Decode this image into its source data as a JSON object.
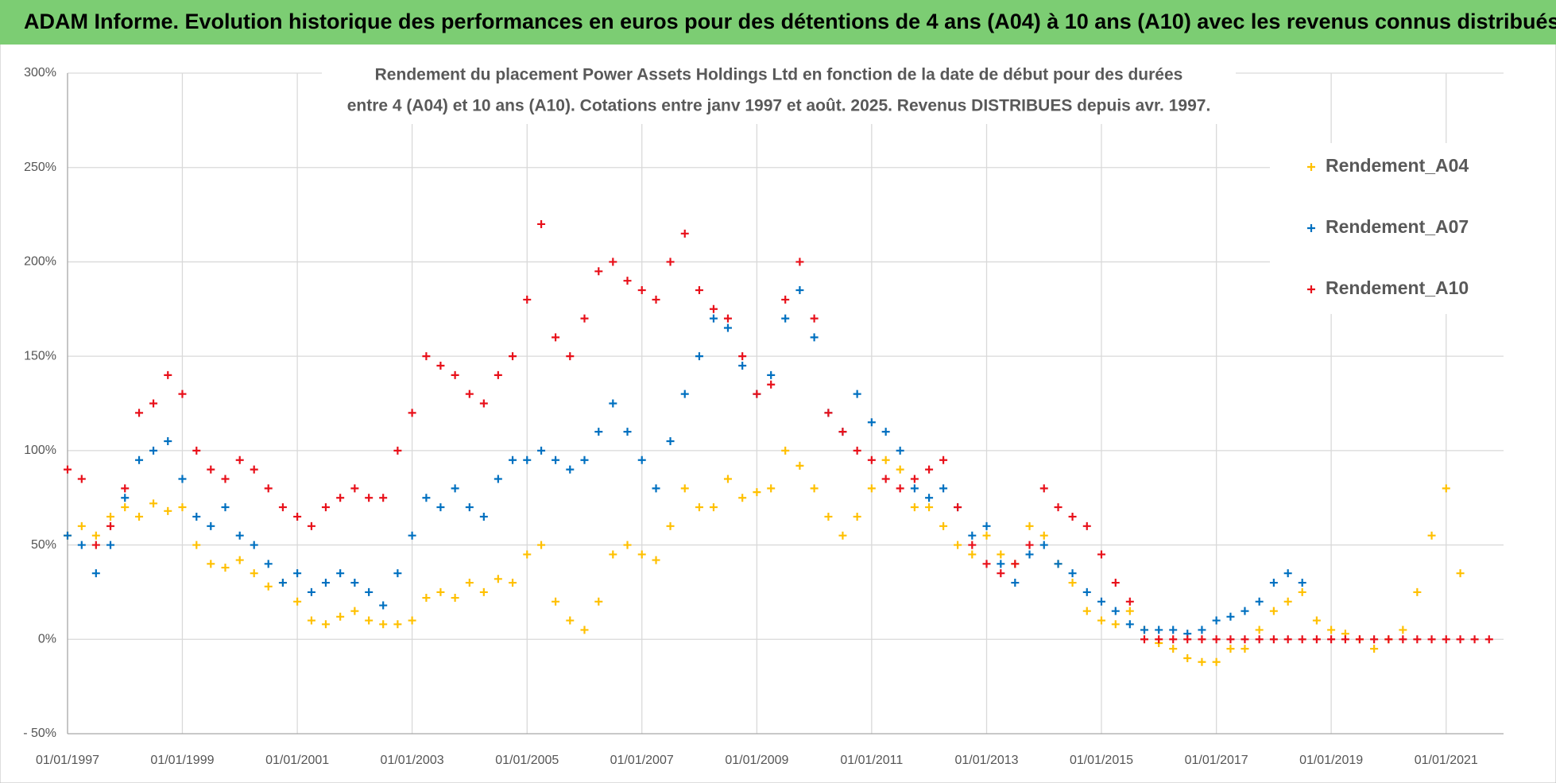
{
  "chart_data": {
    "type": "scatter",
    "title": "ADAM Informe. Evolution historique des performances en euros pour des détentions de 4 ans (A04) à 10 ans (A10) avec les revenus connus distribués",
    "subtitle": [
      "Rendement du placement Power Assets Holdings Ltd en fonction de la date de début pour des durées",
      "entre 4 (A04) et 10 ans (A10).  Cotations entre janv 1997 et août. 2025. Revenus DISTRIBUES depuis avr. 1997."
    ],
    "x": [
      "1997-01-01",
      "1997-04-01",
      "1997-07-01",
      "1997-10-01",
      "1998-01-01",
      "1998-04-01",
      "1998-07-01",
      "1998-10-01",
      "1999-01-01",
      "1999-04-01",
      "1999-07-01",
      "1999-10-01",
      "2000-01-01",
      "2000-04-01",
      "2000-07-01",
      "2000-10-01",
      "2001-01-01",
      "2001-04-01",
      "2001-07-01",
      "2001-10-01",
      "2002-01-01",
      "2002-04-01",
      "2002-07-01",
      "2002-10-01",
      "2003-01-01",
      "2003-04-01",
      "2003-07-01",
      "2003-10-01",
      "2004-01-01",
      "2004-04-01",
      "2004-07-01",
      "2004-10-01",
      "2005-01-01",
      "2005-04-01",
      "2005-07-01",
      "2005-10-01",
      "2006-01-01",
      "2006-04-01",
      "2006-07-01",
      "2006-10-01",
      "2007-01-01",
      "2007-04-01",
      "2007-07-01",
      "2007-10-01",
      "2008-01-01",
      "2008-04-01",
      "2008-07-01",
      "2008-10-01",
      "2009-01-01",
      "2009-04-01",
      "2009-07-01",
      "2009-10-01",
      "2010-01-01",
      "2010-04-01",
      "2010-07-01",
      "2010-10-01",
      "2011-01-01",
      "2011-04-01",
      "2011-07-01",
      "2011-10-01",
      "2012-01-01",
      "2012-04-01",
      "2012-07-01",
      "2012-10-01",
      "2013-01-01",
      "2013-04-01",
      "2013-07-01",
      "2013-10-01",
      "2014-01-01",
      "2014-04-01",
      "2014-07-01",
      "2014-10-01",
      "2015-01-01",
      "2015-04-01",
      "2015-07-01",
      "2015-10-01",
      "2016-01-01",
      "2016-04-01",
      "2016-07-01",
      "2016-10-01",
      "2017-01-01",
      "2017-04-01",
      "2017-07-01",
      "2017-10-01",
      "2018-01-01",
      "2018-04-01",
      "2018-07-01",
      "2018-10-01",
      "2019-01-01",
      "2019-04-01",
      "2019-07-01",
      "2019-10-01",
      "2020-01-01",
      "2020-04-01",
      "2020-07-01",
      "2020-10-01",
      "2021-01-01",
      "2021-04-01",
      "2021-07-01",
      "2021-10-01"
    ],
    "series": [
      {
        "name": "Rendement_A04",
        "color": "#ffc000",
        "values": [
          55,
          60,
          55,
          65,
          70,
          65,
          72,
          68,
          70,
          50,
          40,
          38,
          42,
          35,
          28,
          30,
          20,
          10,
          8,
          12,
          15,
          10,
          8,
          8,
          10,
          22,
          25,
          22,
          30,
          25,
          32,
          30,
          45,
          50,
          20,
          10,
          5,
          20,
          45,
          50,
          45,
          42,
          60,
          80,
          70,
          70,
          85,
          75,
          78,
          80,
          100,
          92,
          80,
          65,
          55,
          65,
          80,
          95,
          90,
          70,
          70,
          60,
          50,
          45,
          55,
          45,
          40,
          60,
          55,
          40,
          30,
          15,
          10,
          8,
          15,
          5,
          -2,
          -5,
          -10,
          -12,
          -12,
          -5,
          -5,
          5,
          15,
          20,
          25,
          10,
          5,
          3,
          0,
          -5,
          0,
          5,
          25,
          55,
          80,
          35,
          null,
          null
        ]
      },
      {
        "name": "Rendement_A07",
        "color": "#0070c0",
        "values": [
          55,
          50,
          35,
          50,
          75,
          95,
          100,
          105,
          85,
          65,
          60,
          70,
          55,
          50,
          40,
          30,
          35,
          25,
          30,
          35,
          30,
          25,
          18,
          35,
          55,
          75,
          70,
          80,
          70,
          65,
          85,
          95,
          95,
          100,
          95,
          90,
          95,
          110,
          125,
          110,
          95,
          80,
          105,
          130,
          150,
          170,
          165,
          145,
          130,
          140,
          170,
          185,
          160,
          120,
          110,
          130,
          115,
          110,
          100,
          80,
          75,
          80,
          70,
          55,
          60,
          40,
          30,
          45,
          50,
          40,
          35,
          25,
          20,
          15,
          8,
          5,
          5,
          5,
          3,
          5,
          10,
          12,
          15,
          20,
          30,
          35,
          30,
          null,
          null,
          null,
          null,
          null,
          null,
          null,
          null,
          null,
          null,
          null,
          null,
          null
        ]
      },
      {
        "name": "Rendement_A10",
        "color": "#e8101a",
        "values": [
          90,
          85,
          50,
          60,
          80,
          120,
          125,
          140,
          130,
          100,
          90,
          85,
          95,
          90,
          80,
          70,
          65,
          60,
          70,
          75,
          80,
          75,
          75,
          100,
          120,
          150,
          145,
          140,
          130,
          125,
          140,
          150,
          180,
          220,
          160,
          150,
          170,
          195,
          200,
          190,
          185,
          180,
          200,
          215,
          185,
          175,
          170,
          150,
          130,
          135,
          180,
          200,
          170,
          120,
          110,
          100,
          95,
          85,
          80,
          85,
          90,
          95,
          70,
          50,
          40,
          35,
          40,
          50,
          80,
          70,
          65,
          60,
          45,
          30,
          20,
          0,
          0,
          0,
          0,
          0,
          0,
          0,
          0,
          0,
          0,
          0,
          0,
          0,
          0,
          0,
          0,
          0,
          0,
          0,
          0,
          0,
          0,
          0,
          0,
          0
        ]
      }
    ],
    "xlim": [
      "1997-01-01",
      "2022-01-01"
    ],
    "xticks": [
      {
        "value": "1997-01-01",
        "label": "01/01/1997"
      },
      {
        "value": "1999-01-01",
        "label": "01/01/1999"
      },
      {
        "value": "2001-01-01",
        "label": "01/01/2001"
      },
      {
        "value": "2003-01-01",
        "label": "01/01/2003"
      },
      {
        "value": "2005-01-01",
        "label": "01/01/2005"
      },
      {
        "value": "2007-01-01",
        "label": "01/01/2007"
      },
      {
        "value": "2009-01-01",
        "label": "01/01/2009"
      },
      {
        "value": "2011-01-01",
        "label": "01/01/2011"
      },
      {
        "value": "2013-01-01",
        "label": "01/01/2013"
      },
      {
        "value": "2015-01-01",
        "label": "01/01/2015"
      },
      {
        "value": "2017-01-01",
        "label": "01/01/2017"
      },
      {
        "value": "2019-01-01",
        "label": "01/01/2019"
      },
      {
        "value": "2021-01-01",
        "label": "01/01/2021"
      }
    ],
    "ylim": [
      -50,
      300
    ],
    "yticks": [
      {
        "value": -50,
        "label": "- 50%"
      },
      {
        "value": 0,
        "label": "0%"
      },
      {
        "value": 50,
        "label": "50%"
      },
      {
        "value": 100,
        "label": "100%"
      },
      {
        "value": 150,
        "label": "150%"
      },
      {
        "value": 200,
        "label": "200%"
      },
      {
        "value": 250,
        "label": "250%"
      },
      {
        "value": 300,
        "label": "300%"
      }
    ],
    "grid": true,
    "legend": "upper right"
  }
}
